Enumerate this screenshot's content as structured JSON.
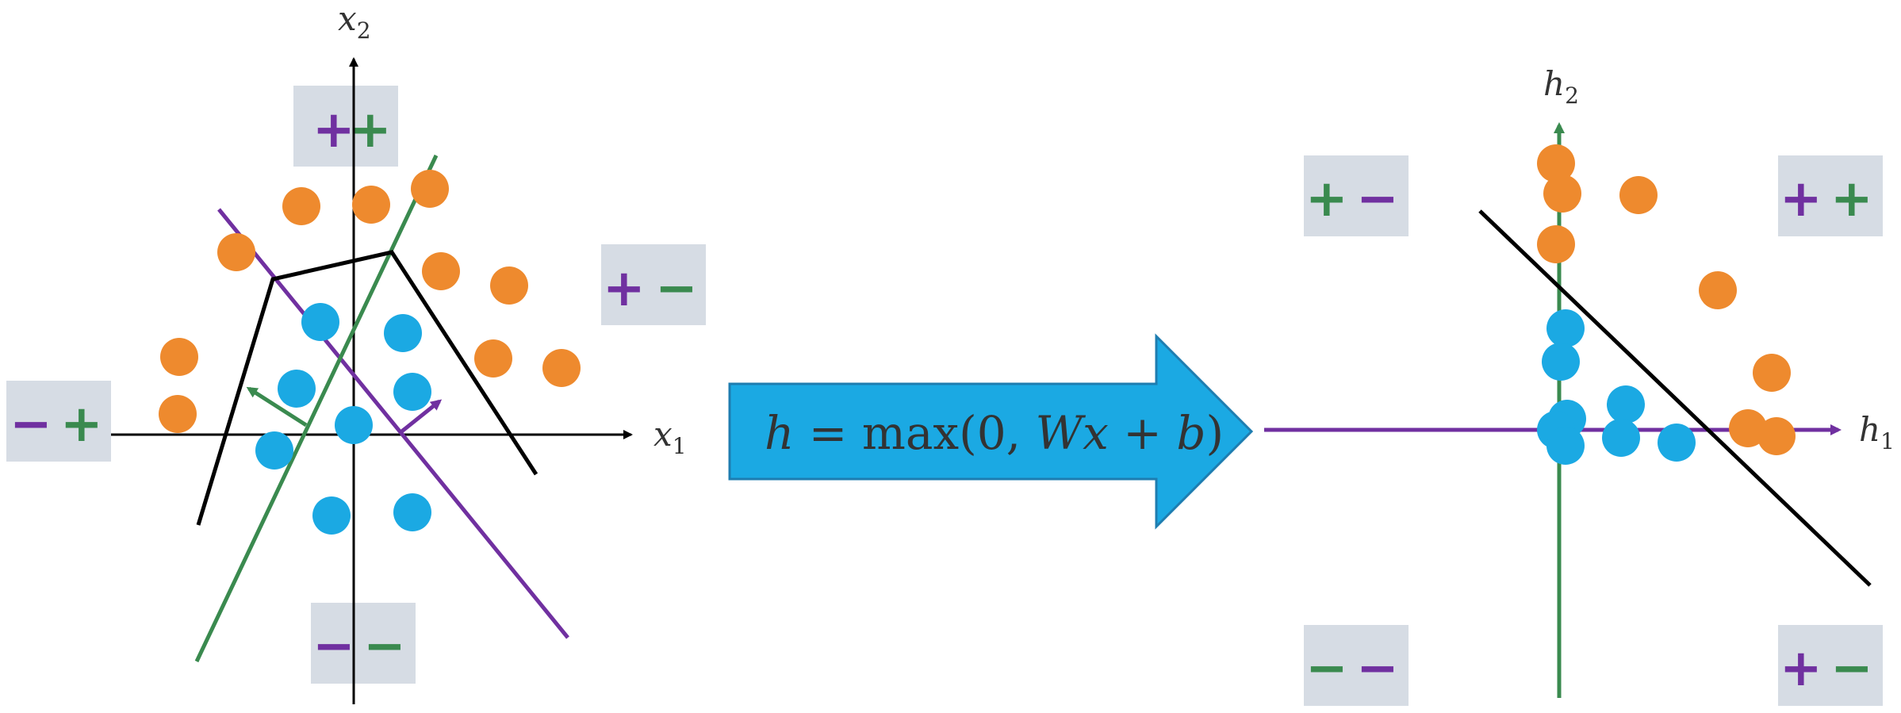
{
  "left_panel": {
    "axis_x_label": "x",
    "axis_x_sub": "1",
    "axis_y_label": "x",
    "axis_y_sub": "2",
    "sign_boxes": [
      {
        "first": "+",
        "second": "+"
      },
      {
        "first": "+",
        "second": "−"
      },
      {
        "first": "−",
        "second": "+"
      },
      {
        "first": "−",
        "second": "−"
      }
    ]
  },
  "transform": {
    "eq_h": "h",
    "eq_eq": " = max(0, ",
    "eq_Wx": "Wx",
    "eq_plus": " + ",
    "eq_b": "b",
    "eq_close": ")"
  },
  "right_panel": {
    "axis_x_label": "h",
    "axis_x_sub": "1",
    "axis_y_label": "h",
    "axis_y_sub": "2",
    "sign_boxes": [
      {
        "first": "+",
        "second": "−"
      },
      {
        "first": "+",
        "second": "+"
      },
      {
        "first": "−",
        "second": "−"
      },
      {
        "first": "+",
        "second": "−"
      }
    ]
  },
  "colors": {
    "orange": "#EE8A2E",
    "blue": "#1BA9E3",
    "purple": "#7030A0",
    "green": "#3A8A4F",
    "black": "#000000",
    "box_bg": "#D6DCE4",
    "arrow_fill": "#1BA9E3",
    "arrow_stroke": "#1E7DB0"
  }
}
